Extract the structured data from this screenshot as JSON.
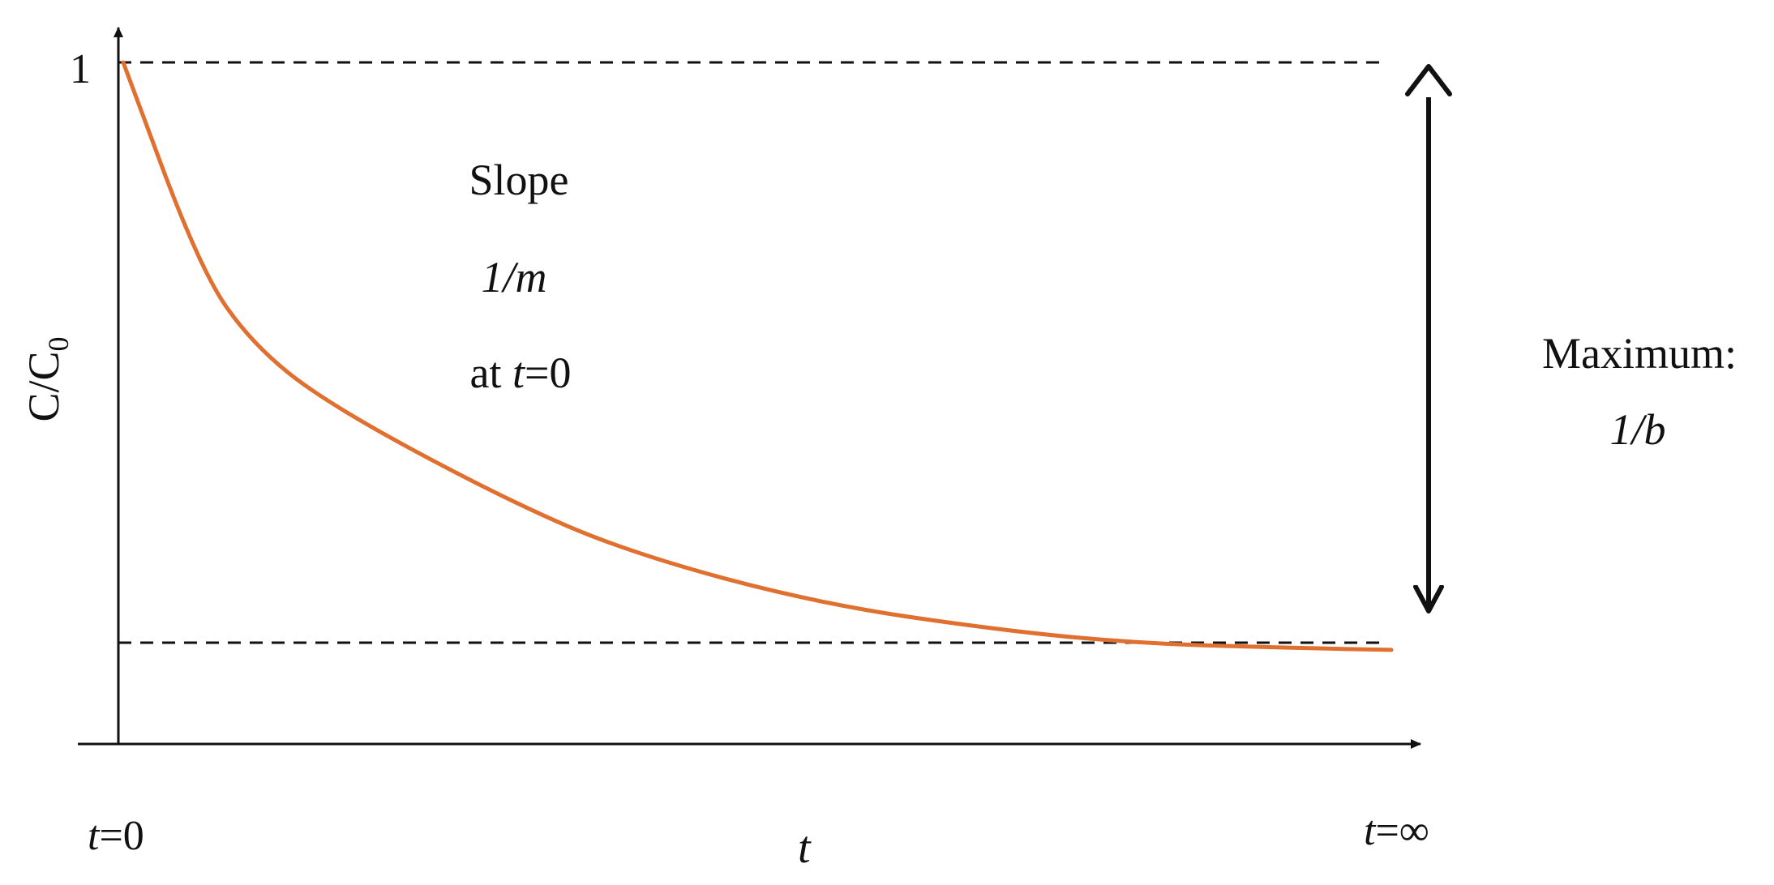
{
  "diagram": {
    "y_axis": {
      "label_main": "C/C",
      "label_subscript": "0",
      "top_tick_label": "1"
    },
    "x_axis": {
      "label": "t",
      "left_label_var": "t",
      "left_label_rest": "=0",
      "right_label_var": "t",
      "right_label_rest": "=∞"
    },
    "slope_annotation": {
      "line1": "Slope",
      "line2_num": "1/",
      "line2_var": "m",
      "line3_prefix": "at ",
      "line3_var": "t",
      "line3_suffix": "=0"
    },
    "maximum_annotation": {
      "line1": "Maximum:",
      "line2_num": "1/",
      "line2_var": "b"
    },
    "curve": {
      "description_points": [
        [
          0.0,
          1.0
        ],
        [
          0.06,
          0.7
        ],
        [
          0.1,
          0.59
        ],
        [
          0.16,
          0.5
        ],
        [
          0.3,
          0.36
        ],
        [
          0.4,
          0.28
        ],
        [
          0.55,
          0.205
        ],
        [
          0.7,
          0.165
        ],
        [
          0.8,
          0.148
        ],
        [
          0.9,
          0.142
        ],
        [
          1.0,
          0.138
        ]
      ],
      "color": "#e0702f"
    },
    "colors": {
      "axis": "#111111",
      "dashed": "#111111",
      "arrow": "#111111"
    }
  }
}
